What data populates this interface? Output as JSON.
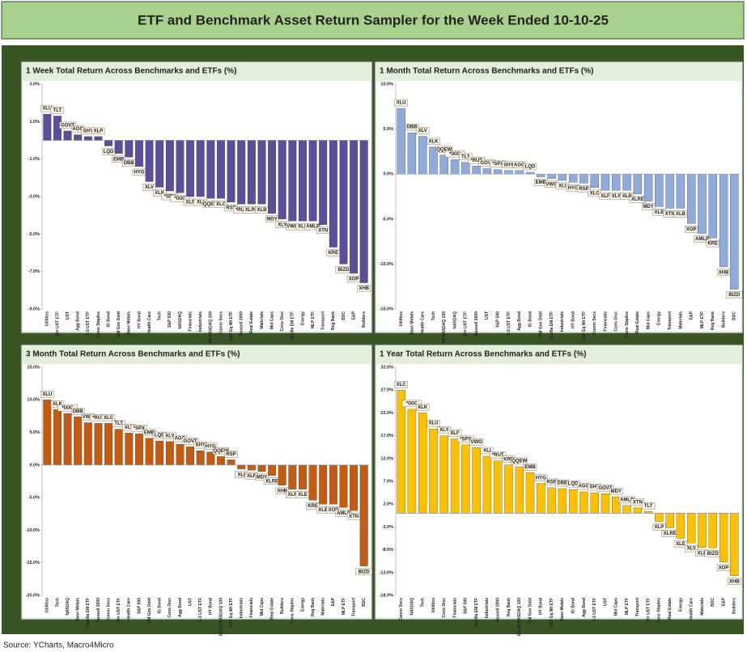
{
  "title": "ETF and Benchmark Asset Return Sampler for the Week Ended 10-10-25",
  "source": "Source: YCharts, Macro4Micro",
  "chart_data": [
    {
      "type": "bar",
      "title": "1 Week Total Return Across Benchmarks and ETFs (%)",
      "color": "#5b4e9a",
      "categories": [
        "Utilities",
        "20+ UST ETF",
        "UST",
        "Agg Bond",
        "1-3 UST ETF",
        "Cons Staples",
        "IG Bond",
        "EM Gov Debt",
        "Base Metals",
        "HY Bond",
        "Health Care",
        "Tech",
        "S&P 500",
        "NASDAQ",
        "Financials",
        "Industrials",
        "Eq Wt NASDAQ 100",
        "Comm Svcs",
        "S&P Eq Wt ETF",
        "Russell 2000",
        "Real Estate",
        "Materials",
        "Mid Caps",
        "Cons Disc",
        "Vanilla EM ETF",
        "Energy",
        "MLP ETF",
        "Transport",
        "Reg Bank",
        "BDC",
        "E&P",
        "Builders"
      ],
      "labels": [
        "XLU",
        "TLT",
        "GOVT",
        "AGG",
        "SHY",
        "XLP",
        "LQD",
        "EMB",
        "DBB",
        "HYG",
        "XLV",
        "XLK",
        "*SPX",
        "*IXIC",
        "XLF",
        "XLI",
        "QQEW",
        "XLC",
        "RSP",
        "*RUT",
        "XLRE",
        "XLB",
        "MDY",
        "XLY",
        "VWO",
        "XLE",
        "AMLP",
        "XTN",
        "KRE",
        "BIZD",
        "XOP",
        "XHB"
      ],
      "values": [
        1.4,
        1.3,
        0.5,
        0.3,
        0.2,
        0.2,
        -0.3,
        -0.7,
        -0.9,
        -1.4,
        -2.2,
        -2.5,
        -2.7,
        -2.8,
        -3.0,
        -3.0,
        -3.1,
        -3.1,
        -3.3,
        -3.4,
        -3.4,
        -3.4,
        -3.9,
        -4.2,
        -4.3,
        -4.3,
        -4.3,
        -4.5,
        -5.7,
        -6.6,
        -7.1,
        -7.6
      ],
      "ylim": [
        -9,
        3
      ],
      "yticks": [
        {
          "value": 3,
          "label": "3.0%"
        },
        {
          "value": 1,
          "label": "1.0%"
        },
        {
          "value": -1,
          "label": "-1.0%"
        },
        {
          "value": -3,
          "label": "-3.0%"
        },
        {
          "value": -5,
          "label": "-5.0%"
        },
        {
          "value": -7,
          "label": "-7.0%"
        },
        {
          "value": -9,
          "label": "-9.0%"
        }
      ]
    },
    {
      "type": "bar",
      "title": "1 Month Total Return Across Benchmarks and ETFs (%)",
      "color": "#8faadc",
      "categories": [
        "Utilities",
        "Base Metals",
        "Health Care",
        "Tech",
        "Eq Wt NASDAQ 100",
        "NASDAQ",
        "20+ UST ETF",
        "Russell 2000",
        "UST",
        "S&P 500",
        "1-3 UST ETF",
        "Agg Bond",
        "IG Bond",
        "EM Gov Debt",
        "Vanilla EM ETF",
        "Industrials",
        "HY Bond",
        "S&P Eq Wt ETF",
        "Comm Svcs",
        "Financials",
        "Cons Disc",
        "Cons Staples",
        "Real Estate",
        "Mid Caps",
        "Energy",
        "Transport",
        "Materials",
        "E&P",
        "MLP ETF",
        "Reg Bank",
        "Builders",
        "BDC"
      ],
      "labels": [
        "XLU",
        "DBB",
        "XLV",
        "XLK",
        "QQEW",
        "*IXIC",
        "TLT",
        "*RUT",
        "GOVT",
        "*SPX",
        "SHY",
        "AGG",
        "LQD",
        "EMB",
        "VWO",
        "XLI",
        "HYG",
        "RSP",
        "XLC",
        "XLF",
        "XLY",
        "XLP",
        "XLRE",
        "MDY",
        "XLE",
        "XTN",
        "XLB",
        "XOP",
        "AMLP",
        "KRE",
        "XHB",
        "BIZD"
      ],
      "values": [
        7.3,
        4.6,
        4.2,
        3.0,
        2.1,
        1.6,
        1.3,
        0.9,
        0.6,
        0.5,
        0.4,
        0.4,
        0.2,
        -0.3,
        -0.5,
        -0.7,
        -0.9,
        -1.0,
        -1.5,
        -1.8,
        -1.8,
        -1.8,
        -2.2,
        -3.0,
        -3.6,
        -3.8,
        -3.8,
        -5.5,
        -6.6,
        -7.1,
        -10.3,
        -12.8
      ],
      "ylim": [
        -15,
        10
      ],
      "yticks": [
        {
          "value": 10,
          "label": "10.0%"
        },
        {
          "value": 5,
          "label": "5.0%"
        },
        {
          "value": 0,
          "label": "0.0%"
        },
        {
          "value": -5,
          "label": "-5.0%"
        },
        {
          "value": -10,
          "label": "-10.0%"
        },
        {
          "value": -15,
          "label": "-15.0%"
        }
      ]
    },
    {
      "type": "bar",
      "title": "3 Month Total Return Across Benchmarks and ETFs (%)",
      "color": "#c55a11",
      "categories": [
        "Utilities",
        "Tech",
        "NASDAQ",
        "Base Metals",
        "Vanilla EM ETF",
        "Russell 2000",
        "Comm Svcs",
        "20+ UST ETF",
        "Health Care",
        "S&P 500",
        "EM Gov Debt",
        "IG Bond",
        "Cons Disc",
        "Agg Bond",
        "UST",
        "1-3 UST ETF",
        "HY Bond",
        "Eq Wt NASDAQ 100",
        "S&P Eq Wt ETF",
        "Industrials",
        "Financials",
        "Mid Caps",
        "Real Estate",
        "Builders",
        "Cons Staples",
        "Energy",
        "Reg Bank",
        "Materials",
        "E&P",
        "MLP ETF",
        "Transport",
        "BDC"
      ],
      "labels": [
        "XLU",
        "XLK",
        "*IXIC",
        "DBB",
        "VWO",
        "*RUT",
        "XLC",
        "TLT",
        "XLV",
        "*SPX",
        "EMB",
        "LQD",
        "XLY",
        "AGG",
        "GOVT",
        "SHY",
        "HYG",
        "QQEW",
        "RSP",
        "XLI",
        "XLF",
        "MDY",
        "XLRE",
        "XHB",
        "XLP",
        "XLE",
        "KRE",
        "XLB",
        "XOP",
        "AMLP",
        "XTN",
        "BIZD"
      ],
      "values": [
        10.0,
        8.5,
        7.9,
        7.4,
        6.5,
        6.4,
        6.4,
        5.5,
        4.9,
        4.8,
        4.1,
        3.7,
        3.6,
        3.2,
        2.8,
        2.2,
        2.0,
        1.3,
        0.8,
        -0.6,
        -0.8,
        -1.0,
        -1.6,
        -3.1,
        -3.7,
        -3.7,
        -5.4,
        -6.0,
        -6.0,
        -6.5,
        -7.0,
        -15.5
      ],
      "ylim": [
        -20,
        15
      ],
      "yticks": [
        {
          "value": 15,
          "label": "15.0%"
        },
        {
          "value": 10,
          "label": "10.0%"
        },
        {
          "value": 5,
          "label": "5.0%"
        },
        {
          "value": 0,
          "label": "0.0%"
        },
        {
          "value": -5,
          "label": "-5.0%"
        },
        {
          "value": -10,
          "label": "-10.0%"
        },
        {
          "value": -15,
          "label": "-15.0%"
        },
        {
          "value": -20,
          "label": "-20.0%"
        }
      ]
    },
    {
      "type": "bar",
      "title": "1 Year Total Return Across Benchmarks and ETFs (%)",
      "color": "#ffc000",
      "categories": [
        "Comm Svcs",
        "NASDAQ",
        "Tech",
        "Utilities",
        "Cons Disc",
        "Financials",
        "S&P 500",
        "Vanilla EM ETF",
        "Industrials",
        "Russell 2000",
        "Reg Bank",
        "Eq Wt NASDAQ 100",
        "EM Gov Debt",
        "HY Bond",
        "S&P Eq Wt ETF",
        "Base Metals",
        "IG Bond",
        "Agg Bond",
        "1-3 UST ETF",
        "UST",
        "Mid Caps",
        "MLP ETF",
        "Transport",
        "20+ UST ETF",
        "Cons Staples",
        "Real Estate",
        "Energy",
        "Health Care",
        "Materials",
        "BDC",
        "E&P",
        "Builders"
      ],
      "labels": [
        "XLC",
        "*IXIC",
        "XLK",
        "XLU",
        "XLY",
        "XLF",
        "*SPX",
        "VWO",
        "XLI",
        "*RUT",
        "KRE",
        "QQEW",
        "EMB",
        "HYG",
        "RSP",
        "DBB",
        "LQD",
        "AGG",
        "SHY",
        "GOVT",
        "MDY",
        "AMLP",
        "XTN",
        "TLT",
        "XLP",
        "XLRE",
        "XLE",
        "XLV",
        "XLB",
        "BIZD",
        "XOP",
        "XHB"
      ],
      "values": [
        27.0,
        22.8,
        22.0,
        18.5,
        17.0,
        16.3,
        15.0,
        14.4,
        12.5,
        11.5,
        10.6,
        10.2,
        8.9,
        6.5,
        5.6,
        5.4,
        5.2,
        4.7,
        4.5,
        4.3,
        3.6,
        1.7,
        1.2,
        0.4,
        -1.8,
        -3.2,
        -5.5,
        -6.5,
        -7.5,
        -7.6,
        -10.7,
        -13.7
      ],
      "ylim": [
        -18,
        32
      ],
      "yticks": [
        {
          "value": 32,
          "label": "32.0%"
        },
        {
          "value": 27,
          "label": "27.0%"
        },
        {
          "value": 22,
          "label": "22.0%"
        },
        {
          "value": 17,
          "label": "17.0%"
        },
        {
          "value": 12,
          "label": "12.0%"
        },
        {
          "value": 7,
          "label": "7.0%"
        },
        {
          "value": 2,
          "label": "2.0%"
        },
        {
          "value": -3,
          "label": "-3.0%"
        },
        {
          "value": -8,
          "label": "-8.0%"
        },
        {
          "value": -13,
          "label": "-13.0%"
        },
        {
          "value": -18,
          "label": "-18.0%"
        }
      ]
    }
  ]
}
